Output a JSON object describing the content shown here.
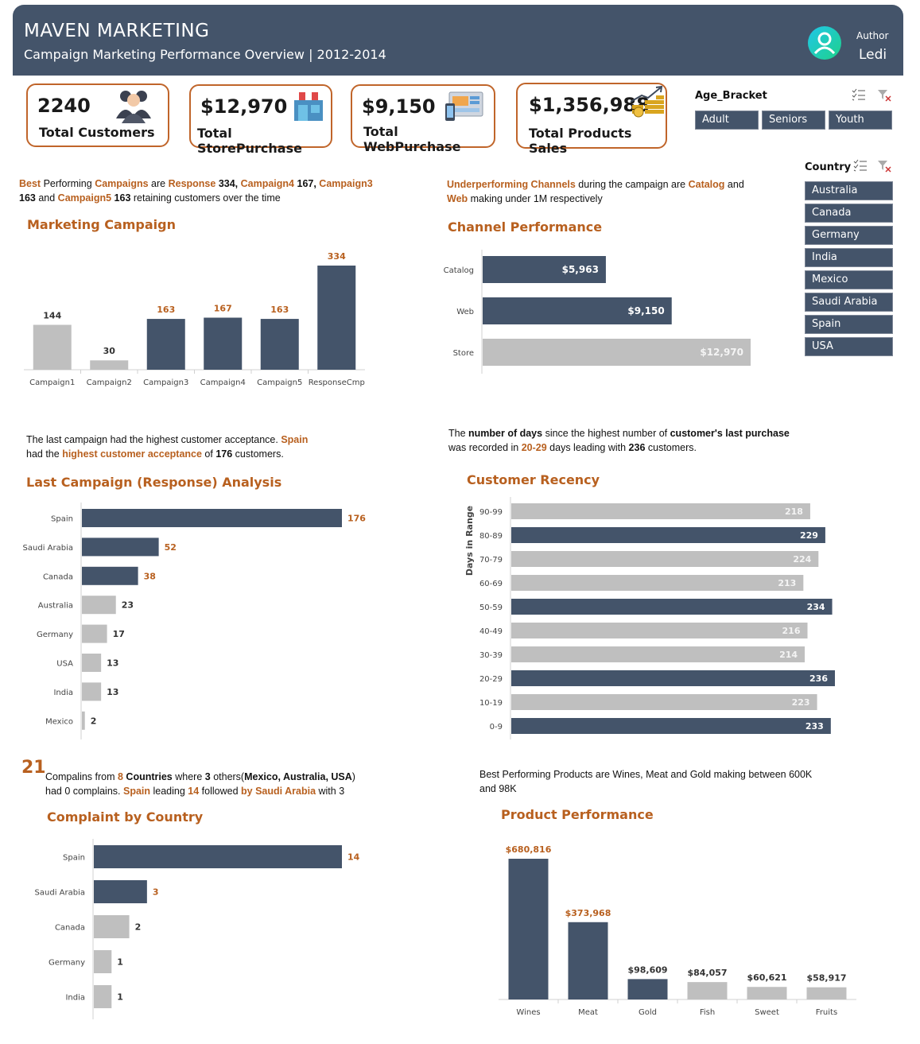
{
  "header": {
    "title": "MAVEN MARKETING",
    "subtitle": "Campaign Marketing Performance Overview | 2012-2014",
    "author_label": "Author",
    "author_name": "Ledi"
  },
  "kpis": [
    {
      "value": "2240",
      "label": "Total Customers",
      "icon": "customers-icon"
    },
    {
      "value": "$12,970",
      "label": "Total StorePurchase",
      "icon": "store-icon"
    },
    {
      "value": "$9,150",
      "label": "Total WebPurchase",
      "icon": "web-icon"
    },
    {
      "value": "$1,356,988",
      "label": "Total Products Sales",
      "icon": "sales-growth-icon"
    }
  ],
  "slicers": {
    "age": {
      "title": "Age_Bracket",
      "items": [
        "Adult",
        "Seniors",
        "Youth"
      ]
    },
    "country": {
      "title": "Country",
      "items": [
        "Australia",
        "Canada",
        "Germany",
        "India",
        "Mexico",
        "Saudi Arabia",
        "Spain",
        "USA"
      ]
    }
  },
  "notes": {
    "campaign": {
      "w1": "Best",
      "t1": " Performing ",
      "w2": "Campaigns",
      "t2": " are ",
      "w3": "Response",
      "t3": " 334, ",
      "w4": "Campaign4",
      "t4": " 167, ",
      "w5": "Campaign3",
      "t5": "163",
      "t6": " and ",
      "w6": "Campaign5",
      "t7": " 163",
      "t8": " retaining customers over the time"
    },
    "channel": {
      "w1": "Underperforming Channels",
      "t1": " during the campaign are ",
      "w2": "Catalog",
      "t2": " and ",
      "w3": "Web",
      "t3": " making under 1M respectively"
    },
    "response": {
      "t1": "The last campaign had the highest customer acceptance. ",
      "w1": "Spain",
      "t2": "had the ",
      "w2": "highest customer acceptance",
      "t3": " of ",
      "b1": "176",
      "t4": " customers."
    },
    "recency": {
      "t1": "The ",
      "b1": "number of days",
      "t2": " since the highest number of ",
      "b2": "customer's last purchase",
      "t3": "was recorded in ",
      "w1": "20-29",
      "t4": " days leading with ",
      "b3": "236",
      "t5": " customers."
    },
    "complaint": {
      "big": "21",
      "t1": "Compalins from ",
      "w1": "8",
      "b1": " Countries",
      "t2": " where ",
      "b2": "3",
      "t3": " others(",
      "b3": "Mexico, Australia, USA",
      "t4": ")",
      "t5": "had 0 complains. ",
      "w2": "Spain",
      "t6": " leading ",
      "w3": "14",
      "t7": " followed ",
      "w4": "by Saudi Arabia",
      "t8": " with 3"
    },
    "product": {
      "t1": "Best Performing Products are Wines, Meat and Gold making between 600K",
      "t2": "and 98K"
    }
  },
  "titles": {
    "campaign": "Marketing Campaign",
    "channel": "Channel Performance",
    "response": "Last Campaign (Response) Analysis",
    "recency": "Customer Recency",
    "complaint": "Complaint by Country",
    "product": "Product Performance"
  },
  "colors": {
    "primary": "#44546a",
    "muted": "#bfbfbf",
    "accent": "#b8601f"
  },
  "chart_data": [
    {
      "id": "campaign",
      "type": "bar",
      "title": "Marketing Campaign",
      "categories": [
        "Campaign1",
        "Campaign2",
        "Campaign3",
        "Campaign4",
        "Campaign5",
        "ResponseCmp"
      ],
      "values": [
        144,
        30,
        163,
        167,
        163,
        334
      ],
      "highlight": [
        false,
        false,
        true,
        true,
        true,
        true
      ],
      "labels": [
        "144",
        "30",
        "163",
        "167",
        "163",
        "334"
      ],
      "ylim": [
        0,
        334
      ]
    },
    {
      "id": "channel",
      "type": "bar",
      "orientation": "horizontal",
      "title": "Channel Performance",
      "categories": [
        "Catalog",
        "Web",
        "Store"
      ],
      "values": [
        5963,
        9150,
        12970
      ],
      "highlight": [
        true,
        true,
        false
      ],
      "labels": [
        "$5,963",
        "$9,150",
        "$12,970"
      ]
    },
    {
      "id": "response",
      "type": "bar",
      "orientation": "horizontal",
      "title": "Last Campaign (Response) Analysis",
      "categories": [
        "Spain",
        "Saudi Arabia",
        "Canada",
        "Australia",
        "Germany",
        "USA",
        "India",
        "Mexico"
      ],
      "values": [
        176,
        52,
        38,
        23,
        17,
        13,
        13,
        2
      ],
      "highlight": [
        true,
        true,
        true,
        false,
        false,
        false,
        false,
        false
      ],
      "labels": [
        "176",
        "52",
        "38",
        "23",
        "17",
        "13",
        "13",
        "2"
      ]
    },
    {
      "id": "recency",
      "type": "bar",
      "orientation": "horizontal",
      "title": "Customer Recency",
      "ylabel": "Days in Range",
      "categories": [
        "90-99",
        "80-89",
        "70-79",
        "60-69",
        "50-59",
        "40-49",
        "30-39",
        "20-29",
        "10-19",
        "0-9"
      ],
      "values": [
        218,
        229,
        224,
        213,
        234,
        216,
        214,
        236,
        223,
        233
      ],
      "highlight": [
        false,
        true,
        false,
        false,
        true,
        false,
        false,
        true,
        false,
        true
      ],
      "labels": [
        "218",
        "229",
        "224",
        "213",
        "234",
        "216",
        "214",
        "236",
        "223",
        "233"
      ]
    },
    {
      "id": "complaint",
      "type": "bar",
      "orientation": "horizontal",
      "title": "Complaint by Country",
      "categories": [
        "Spain",
        "Saudi Arabia",
        "Canada",
        "Germany",
        "India"
      ],
      "values": [
        14,
        3,
        2,
        1,
        1
      ],
      "highlight": [
        true,
        true,
        false,
        false,
        false
      ],
      "labels": [
        "14",
        "3",
        "2",
        "1",
        "1"
      ]
    },
    {
      "id": "product",
      "type": "bar",
      "title": "Product Performance",
      "categories": [
        "Wines",
        "Meat",
        "Gold",
        "Fish",
        "Sweet",
        "Fruits"
      ],
      "values": [
        680816,
        373968,
        98609,
        84057,
        60621,
        58917
      ],
      "highlight": [
        true,
        true,
        true,
        false,
        false,
        false
      ],
      "labels": [
        "$680,816",
        "$373,968",
        "$98,609",
        "$84,057",
        "$60,621",
        "$58,917"
      ]
    }
  ]
}
